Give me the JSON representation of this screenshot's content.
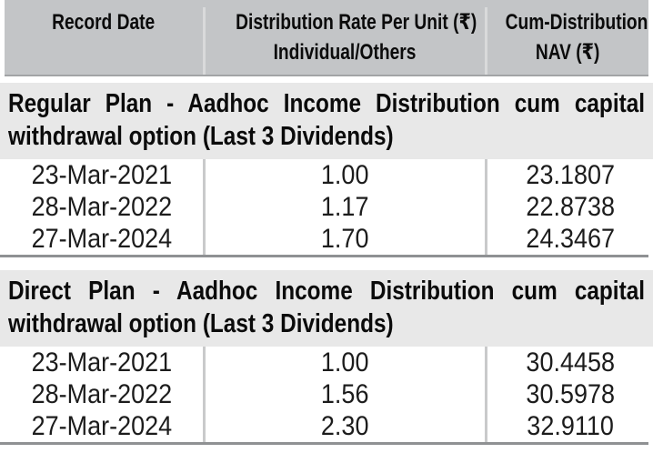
{
  "table": {
    "header": {
      "col1_line1": "Record Date",
      "col2_line1": "Distribution Rate Per Unit  (₹)",
      "col2_line2": "Individual/Others",
      "col3_line1": "Cum-Distribution",
      "col3_line2": "NAV (₹)"
    },
    "sections": [
      {
        "title_lines": [
          "Regular Plan - Aadhoc Income Distribution cum capital",
          "withdrawal option (Last 3 Dividends)"
        ],
        "rows": [
          {
            "date": "23-Mar-2021",
            "rate": "1.00",
            "nav": "23.1807"
          },
          {
            "date": "28-Mar-2022",
            "rate": "1.17",
            "nav": "22.8738"
          },
          {
            "date": "27-Mar-2024",
            "rate": "1.70",
            "nav": "24.3467"
          }
        ]
      },
      {
        "title_lines": [
          "Direct Plan - Aadhoc Income Distribution cum capital",
          "withdrawal option (Last 3 Dividends)"
        ],
        "rows": [
          {
            "date": "23-Mar-2021",
            "rate": "1.00",
            "nav": "30.4458"
          },
          {
            "date": "28-Mar-2022",
            "rate": "1.56",
            "nav": "30.5978"
          },
          {
            "date": "27-Mar-2024",
            "rate": "2.30",
            "nav": "32.9110"
          }
        ]
      }
    ],
    "colors": {
      "header_bg": "#c3c5c7",
      "section_bg": "#e8e8e8",
      "header_divider": "#d9dadb",
      "data_divider": "#c9cacb",
      "rule": "#8f9193",
      "text": "#0b0b0b"
    }
  }
}
